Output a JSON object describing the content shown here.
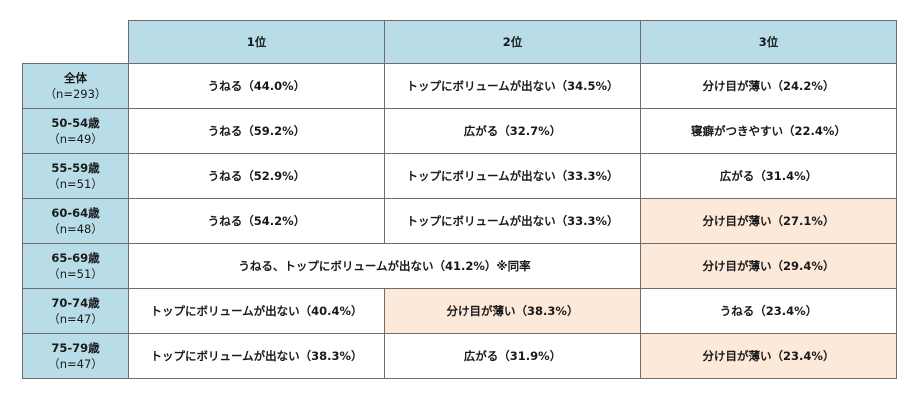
{
  "header": {
    "corner": "",
    "col1": "1位",
    "col2": "2位",
    "col3": "3位"
  },
  "rows": [
    {
      "label": "全体",
      "n": "（n=293）",
      "c1": "うねる（44.0%）",
      "c2": "トップにボリュームが出ない（34.5%）",
      "c3": "分け目が薄い（24.2%）"
    },
    {
      "label": "50-54歳",
      "n": "（n=49）",
      "c1": "うねる（59.2%）",
      "c2": "広がる（32.7%）",
      "c3": "寝癖がつきやすい（22.4%）"
    },
    {
      "label": "55-59歳",
      "n": "（n=51）",
      "c1": "うねる（52.9%）",
      "c2": "トップにボリュームが出ない（33.3%）",
      "c3": "広がる（31.4%）"
    },
    {
      "label": "60-64歳",
      "n": "（n=48）",
      "c1": "うねる（54.2%）",
      "c2": "トップにボリュームが出ない（33.3%）",
      "c3": "分け目が薄い（27.1%）"
    },
    {
      "label": "65-69歳",
      "n": "（n=51）",
      "c12": "うねる、トップにボリュームが出ない（41.2%）※同率",
      "c3": "分け目が薄い（29.4%）"
    },
    {
      "label": "70-74歳",
      "n": "（n=47）",
      "c1": "トップにボリュームが出ない（40.4%）",
      "c2": "分け目が薄い（38.3%）",
      "c3": "うねる（23.4%）"
    },
    {
      "label": "75-79歳",
      "n": "（n=47）",
      "c1": "トップにボリュームが出ない（38.3%）",
      "c2": "広がる（31.9%）",
      "c3": "分け目が薄い（23.4%）"
    }
  ],
  "colors": {
    "header_bg": "#b8dce8",
    "highlight_bg": "#fde9d9",
    "border": "#6e6e6e"
  }
}
